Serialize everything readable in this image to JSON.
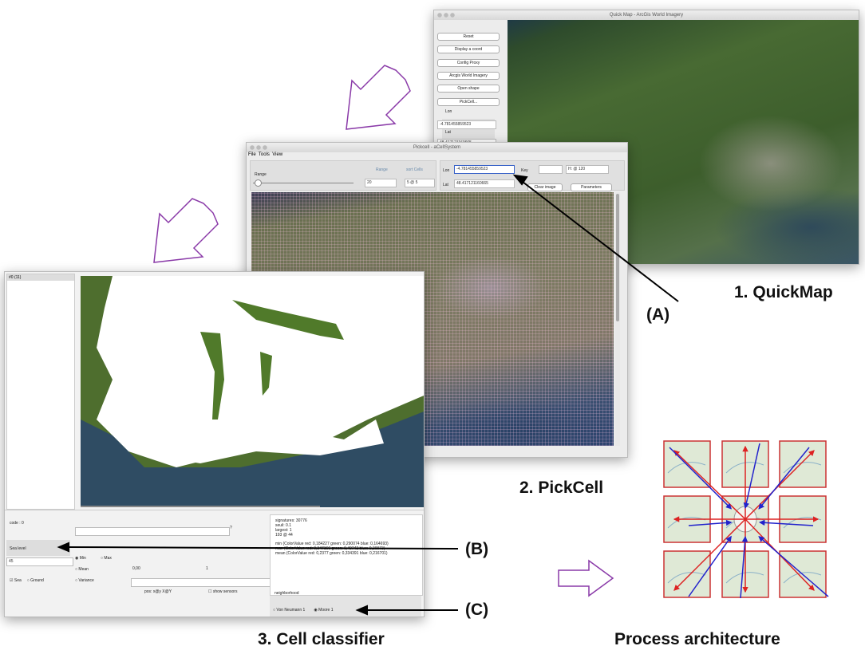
{
  "labels": {
    "quickmap": "1. QuickMap",
    "pickcell": "2. PickCell",
    "classifier": "3. Cell classifier",
    "architecture": "Process architecture",
    "a": "(A)",
    "b": "(B)",
    "c": "(C)"
  },
  "quickmap": {
    "title": "Quick Map - ArcGis World Imagery",
    "buttons": [
      "Reset",
      "Display a coord",
      "Config Proxy",
      "Arcgis World Imagery",
      "Open shape",
      "PickCell..."
    ],
    "lon_label": "Lon",
    "lon_value": "-4.781455859523",
    "lat_label": "Lat",
    "lat_value": "48.417121160665"
  },
  "pickcell": {
    "title": "Pickcell - aCellSystem",
    "menu": [
      "File",
      "Tools",
      "View"
    ],
    "range_label": "Range",
    "range_header": "Range",
    "cells_header": "sort Cells",
    "range_value": "20",
    "cells_value": "5 @ 5",
    "lon_label": "Lon",
    "lon_value": "-4.781455859523",
    "lat_label": "Lat",
    "lat_value": "48.417121160665",
    "key_label": "Key",
    "size_value": "H: @ 120",
    "buttons": [
      "Clear image",
      "Parameters"
    ]
  },
  "classifier": {
    "list_item": "#0 (11)",
    "code": "code : 0",
    "question": "?",
    "sea_level_label": "Sea level",
    "sea_level_value": "45",
    "stats": [
      "Min",
      "Max",
      "Mean",
      "Variance"
    ],
    "range_min": "0,00",
    "range_max": "1",
    "classes": [
      "Sea",
      "Ground"
    ],
    "pos": "pos: x@y X@Y",
    "show_sensors": "show sensors",
    "info": [
      "signatures: 30776",
      "seuil: 0.1",
      "largest: 1",
      "193 @ 44"
    ],
    "colors": [
      "min (ColorValue red: 0,184227 green: 0,290074 blue: 0,164693)",
      "max (ColorValue red: 0,347166 green: 0,40742 blue: 0,30973)",
      "mean (ColorValue red: 0,2377 green: 0,334391 blue: 0,216701)"
    ],
    "neighborhood": "neighborhood",
    "neighbors": [
      "Von Neumann 1",
      "Moore 1"
    ]
  }
}
